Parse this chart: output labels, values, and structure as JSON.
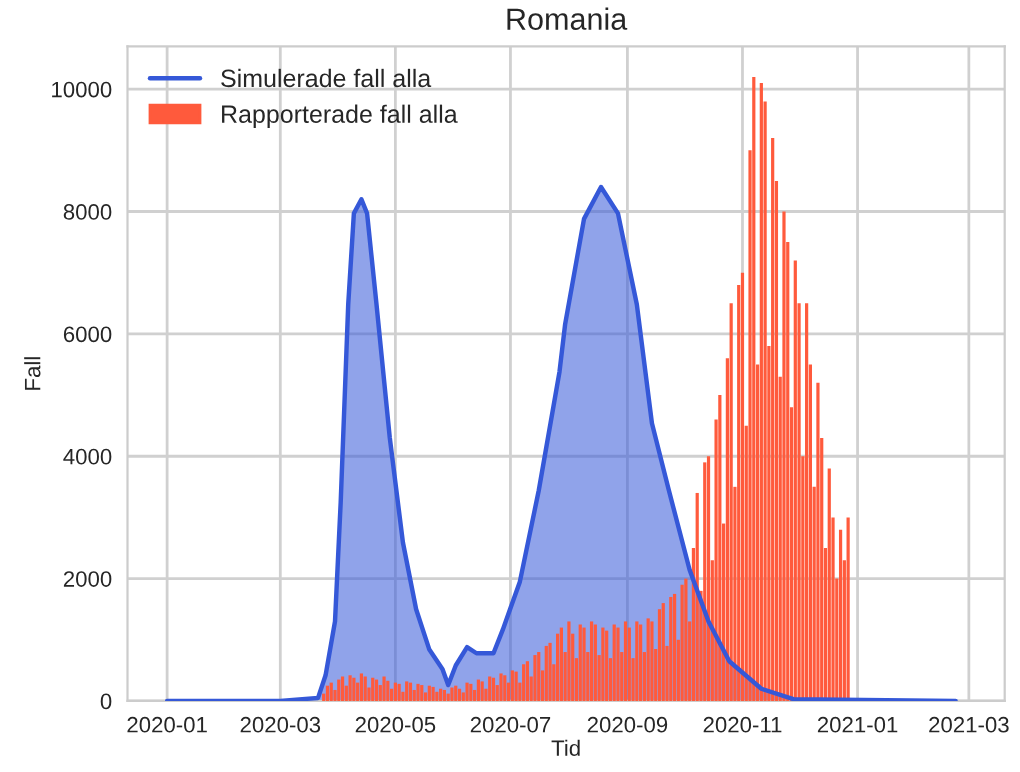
{
  "chart_data": {
    "type": "area",
    "title": "Romania",
    "xlabel": "Tid",
    "ylabel": "Fall",
    "xlim": [
      "2019-12-11",
      "2021-03-20"
    ],
    "xticks": [
      {
        "value": "2020-01-01",
        "label": "2020-01"
      },
      {
        "value": "2020-03-01",
        "label": "2020-03"
      },
      {
        "value": "2020-05-01",
        "label": "2020-05"
      },
      {
        "value": "2020-07-01",
        "label": "2020-07"
      },
      {
        "value": "2020-09-01",
        "label": "2020-09"
      },
      {
        "value": "2020-11-01",
        "label": "2020-11"
      },
      {
        "value": "2021-01-01",
        "label": "2021-01"
      },
      {
        "value": "2021-03-01",
        "label": "2021-03"
      }
    ],
    "ylim": [
      0,
      10700
    ],
    "yticks": [
      0,
      2000,
      4000,
      6000,
      8000,
      10000
    ],
    "grid": true,
    "legend": "top left",
    "series": [
      {
        "name": "Simulerade fall alla",
        "color": "#3558d8",
        "x": [
          "2020-01-01",
          "2020-03-01",
          "2020-03-21",
          "2020-03-25",
          "2020-03-30",
          "2020-04-02",
          "2020-04-06",
          "2020-04-09",
          "2020-04-13",
          "2020-04-16",
          "2020-04-21",
          "2020-04-28",
          "2020-05-05",
          "2020-05-12",
          "2020-05-19",
          "2020-05-26",
          "2020-05-29",
          "2020-06-02",
          "2020-06-08",
          "2020-06-13",
          "2020-06-22",
          "2020-06-27",
          "2020-07-06",
          "2020-07-16",
          "2020-07-27",
          "2020-07-30",
          "2020-08-09",
          "2020-08-18",
          "2020-08-27",
          "2020-09-06",
          "2020-09-14",
          "2020-09-23",
          "2020-10-04",
          "2020-10-14",
          "2020-10-25",
          "2020-11-11",
          "2020-11-28",
          "2021-02-22"
        ],
        "values": [
          0,
          0,
          50,
          420,
          1300,
          3240,
          6480,
          7970,
          8200,
          7970,
          6480,
          4310,
          2590,
          1500,
          840,
          520,
          260,
          580,
          880,
          780,
          780,
          1170,
          1950,
          3440,
          5380,
          6160,
          7880,
          8400,
          7970,
          6480,
          4540,
          3440,
          2140,
          1300,
          650,
          200,
          30,
          0
        ]
      },
      {
        "name": "Rapporterade fall alla",
        "type": "bar",
        "color": "#ff5a3c",
        "x": [
          "2020-03-24",
          "2020-03-26",
          "2020-03-28",
          "2020-03-30",
          "2020-04-01",
          "2020-04-03",
          "2020-04-05",
          "2020-04-07",
          "2020-04-09",
          "2020-04-11",
          "2020-04-13",
          "2020-04-15",
          "2020-04-17",
          "2020-04-19",
          "2020-04-21",
          "2020-04-23",
          "2020-04-25",
          "2020-04-27",
          "2020-04-29",
          "2020-05-01",
          "2020-05-03",
          "2020-05-05",
          "2020-05-07",
          "2020-05-09",
          "2020-05-11",
          "2020-05-13",
          "2020-05-15",
          "2020-05-17",
          "2020-05-19",
          "2020-05-21",
          "2020-05-23",
          "2020-05-25",
          "2020-05-27",
          "2020-05-29",
          "2020-05-31",
          "2020-06-02",
          "2020-06-04",
          "2020-06-06",
          "2020-06-08",
          "2020-06-10",
          "2020-06-12",
          "2020-06-14",
          "2020-06-16",
          "2020-06-18",
          "2020-06-20",
          "2020-06-22",
          "2020-06-24",
          "2020-06-26",
          "2020-06-28",
          "2020-06-30",
          "2020-07-02",
          "2020-07-04",
          "2020-07-06",
          "2020-07-08",
          "2020-07-10",
          "2020-07-12",
          "2020-07-14",
          "2020-07-16",
          "2020-07-18",
          "2020-07-20",
          "2020-07-22",
          "2020-07-24",
          "2020-07-26",
          "2020-07-28",
          "2020-07-30",
          "2020-08-01",
          "2020-08-03",
          "2020-08-05",
          "2020-08-07",
          "2020-08-09",
          "2020-08-11",
          "2020-08-13",
          "2020-08-15",
          "2020-08-17",
          "2020-08-19",
          "2020-08-21",
          "2020-08-23",
          "2020-08-25",
          "2020-08-27",
          "2020-08-29",
          "2020-08-31",
          "2020-09-02",
          "2020-09-04",
          "2020-09-06",
          "2020-09-08",
          "2020-09-10",
          "2020-09-12",
          "2020-09-14",
          "2020-09-16",
          "2020-09-18",
          "2020-09-20",
          "2020-09-22",
          "2020-09-24",
          "2020-09-26",
          "2020-09-28",
          "2020-09-30",
          "2020-10-02",
          "2020-10-04",
          "2020-10-06",
          "2020-10-08",
          "2020-10-10",
          "2020-10-12",
          "2020-10-14",
          "2020-10-16",
          "2020-10-18",
          "2020-10-20",
          "2020-10-22",
          "2020-10-24",
          "2020-10-26",
          "2020-10-28",
          "2020-10-30",
          "2020-11-01",
          "2020-11-03",
          "2020-11-05",
          "2020-11-07",
          "2020-11-09",
          "2020-11-11",
          "2020-11-13",
          "2020-11-15",
          "2020-11-17",
          "2020-11-19",
          "2020-11-21",
          "2020-11-23",
          "2020-11-25",
          "2020-11-27",
          "2020-11-29",
          "2020-12-01",
          "2020-12-03",
          "2020-12-05",
          "2020-12-07",
          "2020-12-09",
          "2020-12-11",
          "2020-12-13",
          "2020-12-15",
          "2020-12-17",
          "2020-12-19",
          "2020-12-21",
          "2020-12-23",
          "2020-12-25",
          "2020-12-27"
        ],
        "values": [
          120,
          250,
          300,
          180,
          350,
          400,
          250,
          420,
          380,
          300,
          450,
          400,
          220,
          380,
          350,
          260,
          400,
          330,
          200,
          300,
          280,
          150,
          320,
          300,
          180,
          280,
          260,
          140,
          250,
          230,
          150,
          200,
          180,
          120,
          220,
          250,
          200,
          140,
          300,
          280,
          180,
          350,
          320,
          200,
          400,
          380,
          260,
          450,
          420,
          300,
          500,
          480,
          300,
          600,
          650,
          400,
          750,
          800,
          500,
          900,
          950,
          600,
          1100,
          1200,
          800,
          1300,
          1100,
          700,
          1250,
          1200,
          800,
          1300,
          1250,
          750,
          1200,
          1150,
          700,
          1250,
          1200,
          800,
          1300,
          1200,
          700,
          1300,
          1250,
          800,
          1350,
          1300,
          850,
          1500,
          1600,
          900,
          1700,
          1750,
          1000,
          1900,
          2000,
          1300,
          2500,
          3400,
          1800,
          3900,
          4000,
          2300,
          4600,
          5000,
          2900,
          5600,
          6500,
          3500,
          6800,
          7000,
          4500,
          9000,
          10200,
          5500,
          10100,
          9800,
          5800,
          9200,
          8500,
          5300,
          8000,
          7500,
          4800,
          7200,
          6500,
          4000,
          6500,
          5500,
          3500,
          5200,
          4300,
          2500,
          3800,
          3000,
          2000,
          2800,
          2300,
          3000
        ]
      }
    ]
  }
}
